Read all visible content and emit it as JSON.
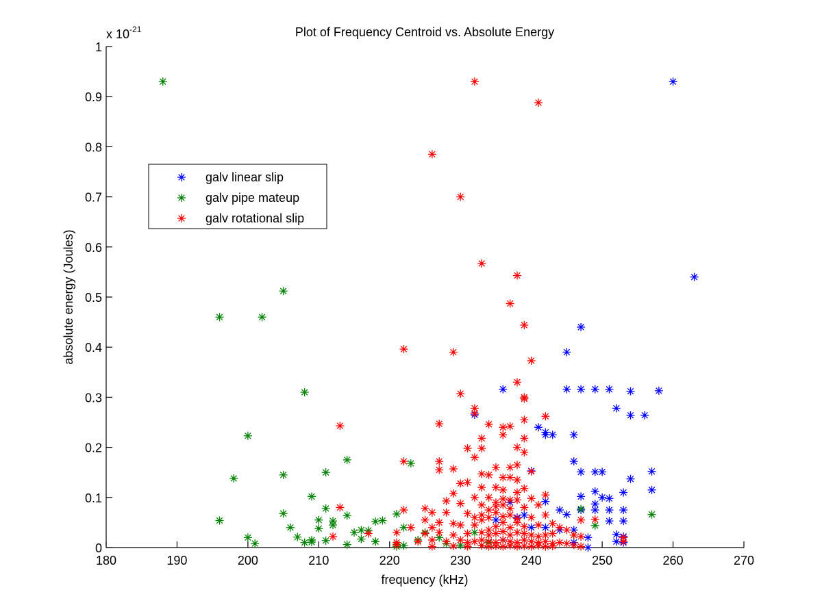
{
  "chart_data": {
    "type": "scatter",
    "title": "Plot of Frequency Centroid vs. Absolute Energy",
    "xlabel": "frequency (kHz)",
    "ylabel": "absolute energy (Joules)",
    "y_multiplier": {
      "prefix": "x 10",
      "exponent": "-21"
    },
    "xlim": [
      180,
      270
    ],
    "ylim": [
      0,
      1
    ],
    "x_ticks": [
      180,
      190,
      200,
      210,
      220,
      230,
      240,
      250,
      260,
      270
    ],
    "x_tick_labels": [
      "180",
      "190",
      "200",
      "210",
      "220",
      "230",
      "240",
      "250",
      "260",
      "270"
    ],
    "y_ticks": [
      0,
      0.1,
      0.2,
      0.3,
      0.4,
      0.5,
      0.6,
      0.7,
      0.8,
      0.9,
      1
    ],
    "y_tick_labels": [
      "0",
      "0.1",
      "0.2",
      "0.3",
      "0.4",
      "0.5",
      "0.6",
      "0.7",
      "0.8",
      "0.9",
      "1"
    ],
    "grid": false,
    "marker": "*",
    "legend": {
      "placement": "upper-left",
      "entries": [
        "galv linear slip",
        "galv pipe mateup",
        "galv rotational slip"
      ]
    },
    "series": [
      {
        "name": "galv linear slip",
        "color": "#0000ff",
        "points": [
          [
            260,
            0.93
          ],
          [
            263,
            0.54
          ],
          [
            247,
            0.44
          ],
          [
            245,
            0.39
          ],
          [
            236,
            0.316
          ],
          [
            245,
            0.316
          ],
          [
            247,
            0.316
          ],
          [
            249,
            0.316
          ],
          [
            251,
            0.316
          ],
          [
            254,
            0.312
          ],
          [
            258,
            0.313
          ],
          [
            232,
            0.265
          ],
          [
            252,
            0.278
          ],
          [
            254,
            0.264
          ],
          [
            256,
            0.264
          ],
          [
            241,
            0.24
          ],
          [
            242,
            0.23
          ],
          [
            242,
            0.225
          ],
          [
            243,
            0.225
          ],
          [
            246,
            0.225
          ],
          [
            246,
            0.172
          ],
          [
            247,
            0.151
          ],
          [
            249,
            0.151
          ],
          [
            250,
            0.151
          ],
          [
            257,
            0.152
          ],
          [
            240,
            0.153
          ],
          [
            254,
            0.137
          ],
          [
            247,
            0.102
          ],
          [
            249,
            0.112
          ],
          [
            250,
            0.1
          ],
          [
            251,
            0.098
          ],
          [
            253,
            0.11
          ],
          [
            257,
            0.115
          ],
          [
            242,
            0.092
          ],
          [
            244,
            0.075
          ],
          [
            245,
            0.066
          ],
          [
            247,
            0.075
          ],
          [
            249,
            0.075
          ],
          [
            251,
            0.075
          ],
          [
            253,
            0.075
          ],
          [
            249,
            0.087
          ],
          [
            251,
            0.053
          ],
          [
            253,
            0.053
          ],
          [
            246,
            0.035
          ],
          [
            248,
            0.02
          ],
          [
            252,
            0.026
          ],
          [
            253,
            0.022
          ],
          [
            238,
            0.06
          ],
          [
            240,
            0.04
          ],
          [
            242,
            0.04
          ],
          [
            244,
            0.035
          ],
          [
            246,
            0.01
          ],
          [
            248,
            0.0
          ],
          [
            252,
            0.012
          ],
          [
            253,
            0.01
          ],
          [
            235,
            0.055
          ],
          [
            237,
            0.09
          ],
          [
            239,
            0.065
          ],
          [
            236,
            0.015
          ]
        ]
      },
      {
        "name": "galv pipe mateup",
        "color": "#008000",
        "points": [
          [
            188,
            0.93
          ],
          [
            205,
            0.512
          ],
          [
            196,
            0.46
          ],
          [
            202,
            0.46
          ],
          [
            208,
            0.31
          ],
          [
            200,
            0.223
          ],
          [
            214,
            0.175
          ],
          [
            223,
            0.168
          ],
          [
            211,
            0.15
          ],
          [
            205,
            0.145
          ],
          [
            198,
            0.138
          ],
          [
            209,
            0.102
          ],
          [
            211,
            0.078
          ],
          [
            214,
            0.064
          ],
          [
            205,
            0.068
          ],
          [
            196,
            0.054
          ],
          [
            212,
            0.053
          ],
          [
            210,
            0.055
          ],
          [
            218,
            0.052
          ],
          [
            219,
            0.054
          ],
          [
            221,
            0.067
          ],
          [
            222,
            0.04
          ],
          [
            212,
            0.045
          ],
          [
            206,
            0.04
          ],
          [
            210,
            0.038
          ],
          [
            216,
            0.035
          ],
          [
            215,
            0.03
          ],
          [
            217,
            0.034
          ],
          [
            200,
            0.02
          ],
          [
            201,
            0.008
          ],
          [
            207,
            0.021
          ],
          [
            208,
            0.01
          ],
          [
            209,
            0.015
          ],
          [
            209,
            0.011
          ],
          [
            211,
            0.014
          ],
          [
            214,
            0.006
          ],
          [
            216,
            0.017
          ],
          [
            218,
            0.012
          ],
          [
            218,
            0.012
          ],
          [
            221,
            0.006
          ],
          [
            222,
            0.004
          ],
          [
            224,
            0.015
          ],
          [
            225,
            0.03
          ],
          [
            227,
            0.02
          ],
          [
            247,
            0.077
          ],
          [
            249,
            0.044
          ],
          [
            257,
            0.066
          ],
          [
            246,
            0.025
          ],
          [
            230,
            0.005
          ],
          [
            233,
            0.004
          ],
          [
            221,
            0.002
          ],
          [
            232,
            0.03
          ],
          [
            234,
            0.01
          ],
          [
            228,
            0.008
          ]
        ]
      },
      {
        "name": "galv rotational slip",
        "color": "#ff0000",
        "points": [
          [
            232,
            0.93
          ],
          [
            241,
            0.888
          ],
          [
            226,
            0.785
          ],
          [
            230,
            0.7
          ],
          [
            233,
            0.567
          ],
          [
            238,
            0.543
          ],
          [
            237,
            0.487
          ],
          [
            239,
            0.444
          ],
          [
            222,
            0.396
          ],
          [
            229,
            0.39
          ],
          [
            240,
            0.373
          ],
          [
            238,
            0.33
          ],
          [
            230,
            0.307
          ],
          [
            239,
            0.3
          ],
          [
            239,
            0.297
          ],
          [
            232,
            0.278
          ],
          [
            232,
            0.268
          ],
          [
            242,
            0.262
          ],
          [
            239,
            0.255
          ],
          [
            227,
            0.247
          ],
          [
            213,
            0.243
          ],
          [
            234,
            0.246
          ],
          [
            236,
            0.24
          ],
          [
            237,
            0.242
          ],
          [
            236,
            0.225
          ],
          [
            233,
            0.218
          ],
          [
            239,
            0.218
          ],
          [
            238,
            0.2
          ],
          [
            231,
            0.198
          ],
          [
            233,
            0.198
          ],
          [
            239,
            0.19
          ],
          [
            232,
            0.18
          ],
          [
            227,
            0.172
          ],
          [
            222,
            0.172
          ],
          [
            238,
            0.165
          ],
          [
            237,
            0.16
          ],
          [
            235,
            0.16
          ],
          [
            229,
            0.157
          ],
          [
            227,
            0.155
          ],
          [
            233,
            0.147
          ],
          [
            234,
            0.145
          ],
          [
            236,
            0.14
          ],
          [
            237,
            0.14
          ],
          [
            238,
            0.135
          ],
          [
            240,
            0.152
          ],
          [
            230,
            0.128
          ],
          [
            231,
            0.13
          ],
          [
            233,
            0.12
          ],
          [
            235,
            0.12
          ],
          [
            236,
            0.115
          ],
          [
            238,
            0.11
          ],
          [
            239,
            0.118
          ],
          [
            229,
            0.108
          ],
          [
            232,
            0.1
          ],
          [
            234,
            0.1
          ],
          [
            236,
            0.097
          ],
          [
            238,
            0.095
          ],
          [
            240,
            0.098
          ],
          [
            242,
            0.105
          ],
          [
            228,
            0.093
          ],
          [
            230,
            0.088
          ],
          [
            233,
            0.085
          ],
          [
            235,
            0.082
          ],
          [
            237,
            0.078
          ],
          [
            239,
            0.08
          ],
          [
            241,
            0.085
          ],
          [
            213,
            0.08
          ],
          [
            222,
            0.075
          ],
          [
            225,
            0.078
          ],
          [
            226,
            0.07
          ],
          [
            228,
            0.07
          ],
          [
            231,
            0.068
          ],
          [
            233,
            0.065
          ],
          [
            234,
            0.06
          ],
          [
            236,
            0.062
          ],
          [
            238,
            0.058
          ],
          [
            240,
            0.06
          ],
          [
            242,
            0.065
          ],
          [
            247,
            0.055
          ],
          [
            249,
            0.056
          ],
          [
            225,
            0.055
          ],
          [
            227,
            0.05
          ],
          [
            229,
            0.048
          ],
          [
            230,
            0.045
          ],
          [
            232,
            0.045
          ],
          [
            235,
            0.042
          ],
          [
            237,
            0.04
          ],
          [
            239,
            0.042
          ],
          [
            241,
            0.045
          ],
          [
            243,
            0.048
          ],
          [
            244,
            0.04
          ],
          [
            245,
            0.035
          ],
          [
            223,
            0.04
          ],
          [
            226,
            0.04
          ],
          [
            212,
            0.022
          ],
          [
            217,
            0.028
          ],
          [
            221,
            0.03
          ],
          [
            225,
            0.028
          ],
          [
            227,
            0.03
          ],
          [
            229,
            0.025
          ],
          [
            231,
            0.028
          ],
          [
            233,
            0.03
          ],
          [
            234,
            0.025
          ],
          [
            235,
            0.028
          ],
          [
            236,
            0.032
          ],
          [
            237,
            0.025
          ],
          [
            238,
            0.03
          ],
          [
            239,
            0.028
          ],
          [
            240,
            0.025
          ],
          [
            241,
            0.022
          ],
          [
            242,
            0.025
          ],
          [
            243,
            0.028
          ],
          [
            246,
            0.025
          ],
          [
            247,
            0.022
          ],
          [
            253,
            0.02
          ],
          [
            221,
            0.01
          ],
          [
            224,
            0.012
          ],
          [
            226,
            0.015
          ],
          [
            228,
            0.012
          ],
          [
            230,
            0.015
          ],
          [
            231,
            0.01
          ],
          [
            232,
            0.012
          ],
          [
            233,
            0.015
          ],
          [
            234,
            0.012
          ],
          [
            235,
            0.01
          ],
          [
            236,
            0.015
          ],
          [
            237,
            0.012
          ],
          [
            238,
            0.01
          ],
          [
            239,
            0.015
          ],
          [
            240,
            0.012
          ],
          [
            241,
            0.01
          ],
          [
            242,
            0.012
          ],
          [
            243,
            0.008
          ],
          [
            244,
            0.01
          ],
          [
            245,
            0.008
          ],
          [
            246,
            0.005
          ],
          [
            247,
            0.002
          ],
          [
            253,
            0.012
          ],
          [
            226,
            0.002
          ],
          [
            229,
            0.003
          ],
          [
            231,
            0.002
          ],
          [
            233,
            0.004
          ],
          [
            234,
            0.002
          ],
          [
            235,
            0.003
          ],
          [
            236,
            0.002
          ],
          [
            237,
            0.004
          ],
          [
            238,
            0.002
          ],
          [
            239,
            0.003
          ],
          [
            240,
            0.002
          ],
          [
            241,
            0.004
          ],
          [
            242,
            0.002
          ],
          [
            243,
            0.003
          ],
          [
            221,
            0.005
          ],
          [
            234,
            0.035
          ],
          [
            236,
            0.05
          ],
          [
            235,
            0.07
          ],
          [
            237,
            0.065
          ],
          [
            238,
            0.05
          ],
          [
            234,
            0.075
          ],
          [
            236,
            0.085
          ],
          [
            237,
            0.095
          ],
          [
            235,
            0.09
          ],
          [
            233,
            0.055
          ],
          [
            232,
            0.06
          ]
        ]
      }
    ]
  }
}
